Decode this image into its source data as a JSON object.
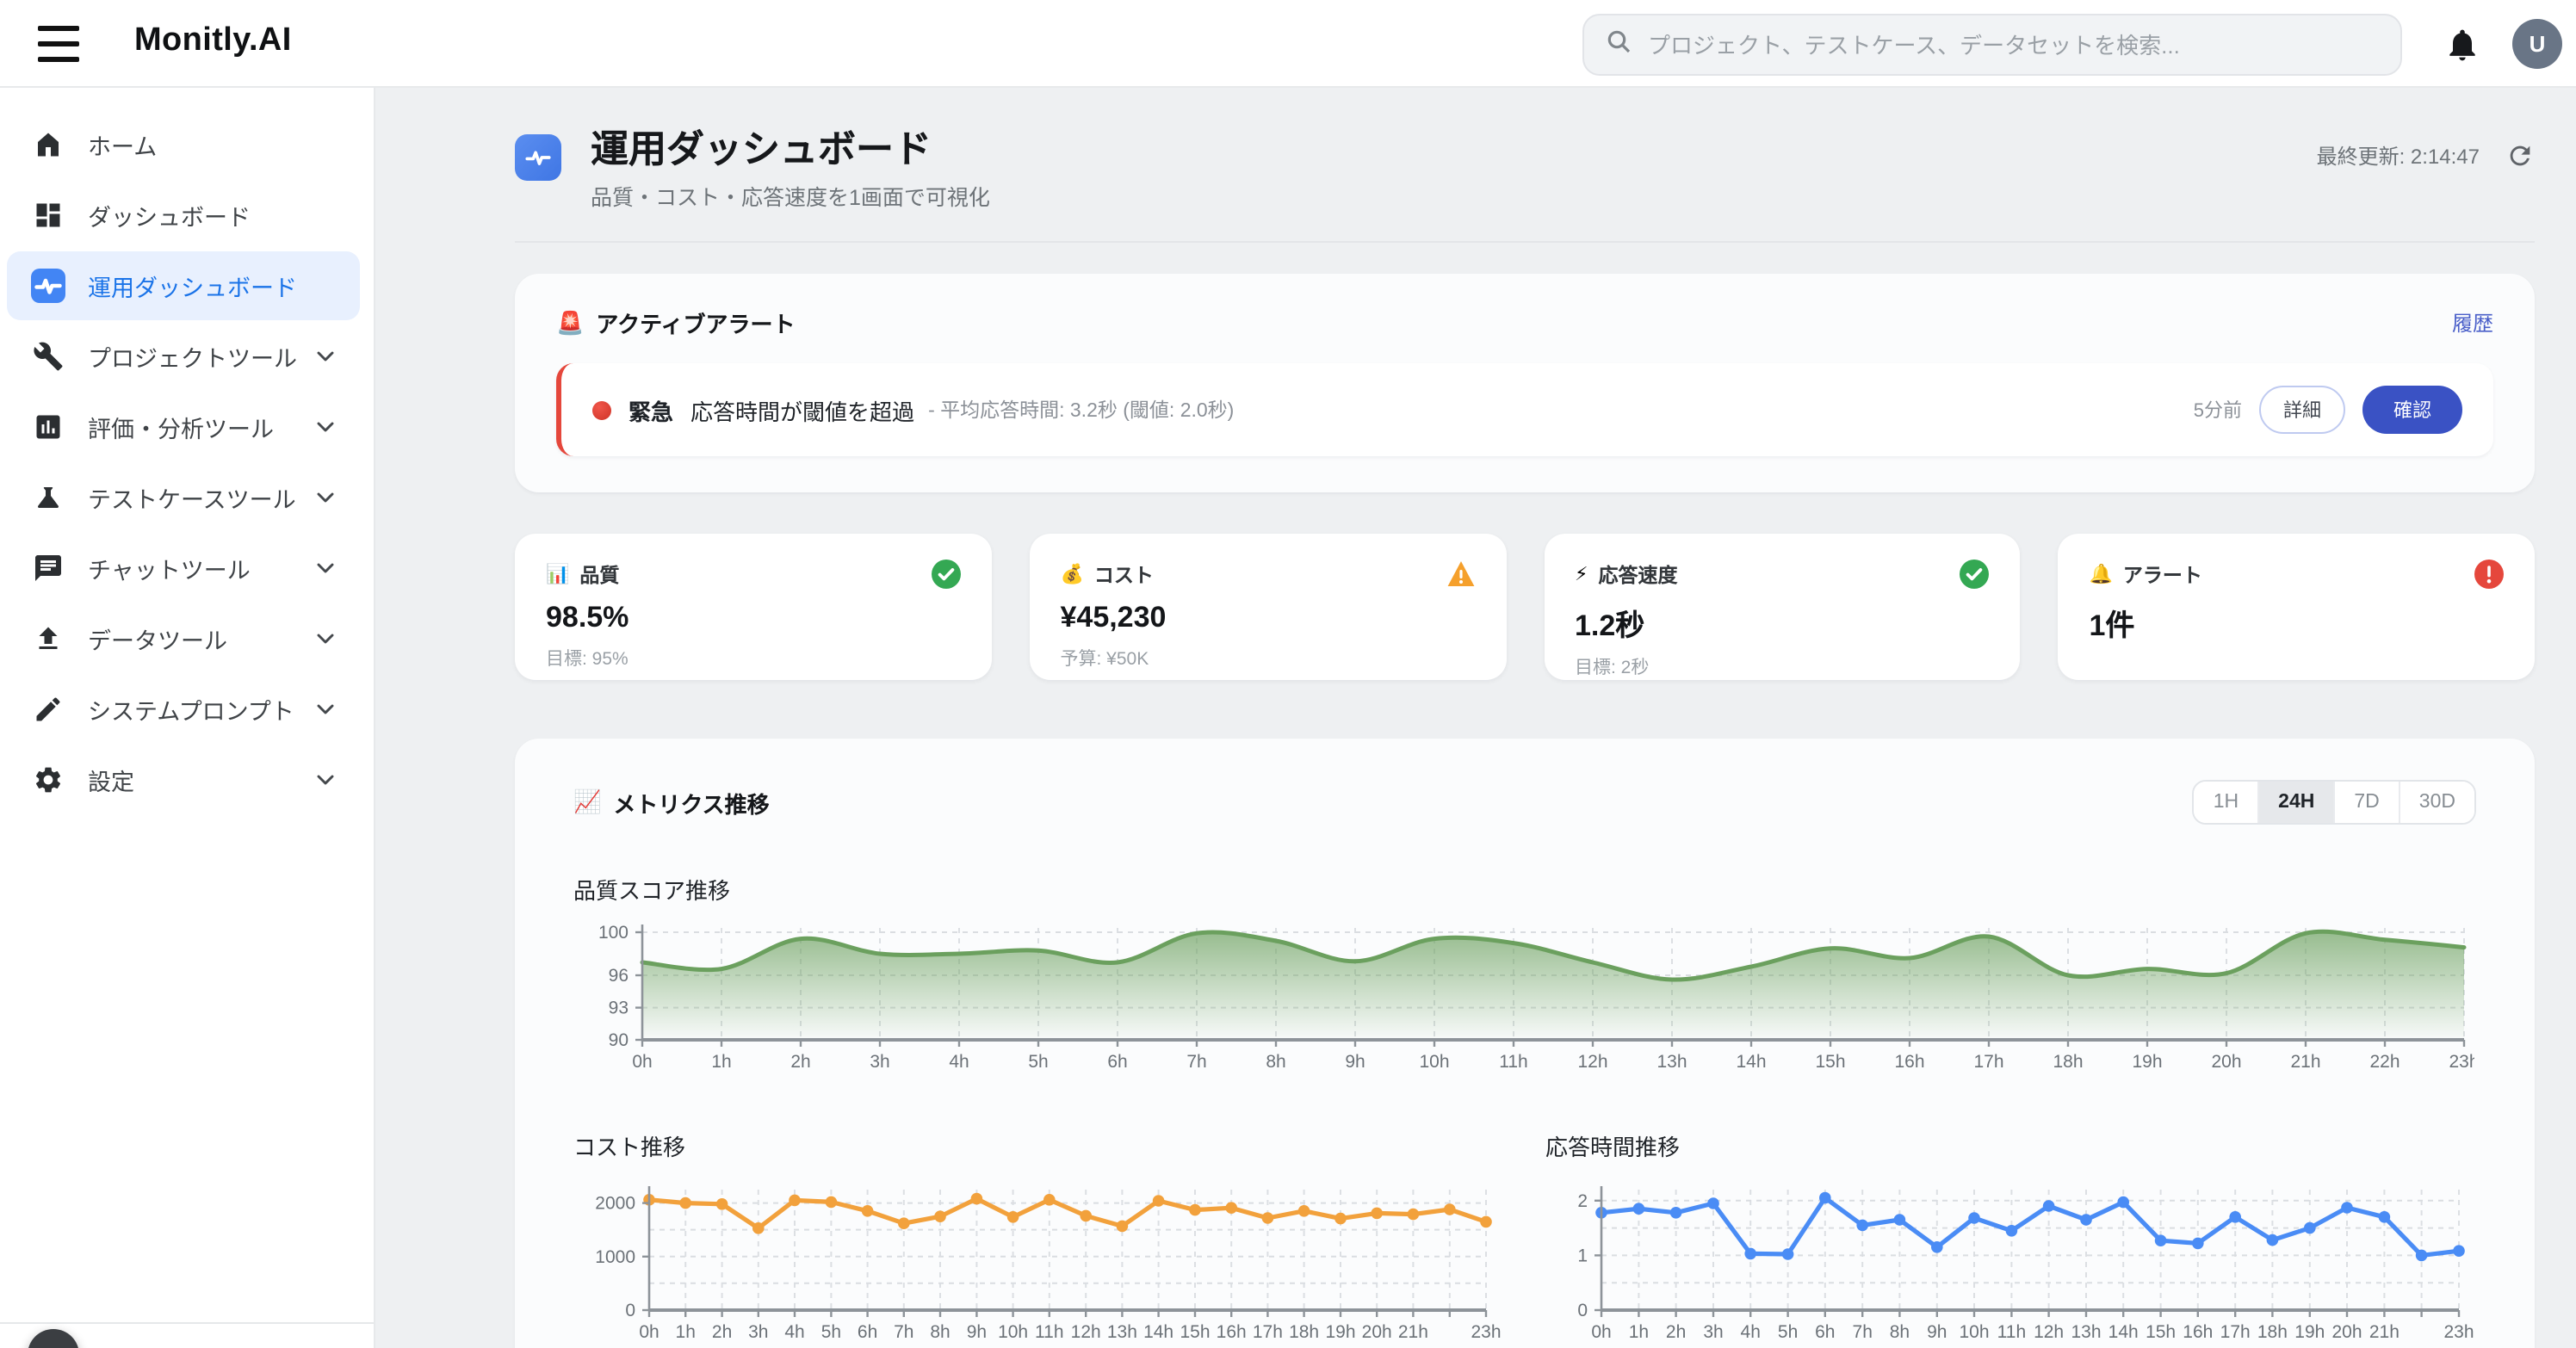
{
  "topbar": {
    "logo": "Monitly.AI",
    "search_placeholder": "プロジェクト、テストケース、データセットを検索...",
    "avatar_initial": "U"
  },
  "sidebar": {
    "items": [
      {
        "label": "ホーム",
        "icon": "home-icon",
        "active": false,
        "expandable": false
      },
      {
        "label": "ダッシュボード",
        "icon": "dashboard-icon",
        "active": false,
        "expandable": false
      },
      {
        "label": "運用ダッシュボード",
        "icon": "ops-dashboard-icon",
        "active": true,
        "expandable": false
      },
      {
        "label": "プロジェクトツール",
        "icon": "wrench-icon",
        "active": false,
        "expandable": true
      },
      {
        "label": "評価・分析ツール",
        "icon": "analytics-icon",
        "active": false,
        "expandable": true
      },
      {
        "label": "テストケースツール",
        "icon": "testcase-flask-icon",
        "active": false,
        "expandable": true
      },
      {
        "label": "チャットツール",
        "icon": "chat-icon",
        "active": false,
        "expandable": true
      },
      {
        "label": "データツール",
        "icon": "upload-icon",
        "active": false,
        "expandable": true
      },
      {
        "label": "システムプロンプト",
        "icon": "pencil-icon",
        "active": false,
        "expandable": true
      },
      {
        "label": "設定",
        "icon": "gear-icon",
        "active": false,
        "expandable": true
      }
    ]
  },
  "page_header": {
    "title": "運用ダッシュボード",
    "subtitle": "品質・コスト・応答速度を1画面で可視化",
    "last_updated": "最終更新: 2:14:47"
  },
  "alert_section": {
    "header_icon": "🚨",
    "header_title": "アクティブアラート",
    "history_link": "履歴",
    "alerts": [
      {
        "severity_label": "緊急",
        "message": "応答時間が閾値を超過",
        "detail": "- 平均応答時間: 3.2秒 (閾値: 2.0秒)",
        "time_ago": "5分前",
        "detail_button": "詳細",
        "confirm_button": "確認"
      }
    ]
  },
  "kpi_cards": [
    {
      "icon": "📊",
      "label": "品質",
      "value": "98.5%",
      "sub": "目標: 95%",
      "status": "ok"
    },
    {
      "icon": "💰",
      "label": "コスト",
      "value": "¥45,230",
      "sub": "予算: ¥50K",
      "status": "warn"
    },
    {
      "icon": "⚡",
      "label": "応答速度",
      "value": "1.2秒",
      "sub": "目標: 2秒",
      "status": "ok"
    },
    {
      "icon": "🔔",
      "label": "アラート",
      "value": "1件",
      "sub": "",
      "status": "error"
    }
  ],
  "metrics_section": {
    "header_icon": "📈",
    "header_title": "メトリクス推移",
    "ranges": [
      "1H",
      "24H",
      "7D",
      "30D"
    ],
    "active_range": "24H"
  },
  "chart_data": [
    {
      "id": "quality",
      "type": "area",
      "title": "品質スコア推移",
      "x": [
        "0h",
        "1h",
        "2h",
        "3h",
        "4h",
        "5h",
        "6h",
        "7h",
        "8h",
        "9h",
        "10h",
        "11h",
        "12h",
        "13h",
        "14h",
        "15h",
        "16h",
        "17h",
        "18h",
        "19h",
        "20h",
        "21h",
        "22h",
        "23h"
      ],
      "values": [
        97.2,
        96.6,
        99.4,
        98.0,
        98.0,
        98.3,
        97.2,
        99.9,
        99.2,
        97.3,
        99.4,
        99.0,
        97.2,
        95.6,
        96.8,
        98.5,
        97.6,
        99.6,
        96.0,
        96.6,
        96.2,
        99.9,
        99.3,
        98.6
      ],
      "ylim": [
        90,
        100.4
      ],
      "y_ticks": [
        100,
        96,
        93,
        90
      ],
      "grid_y": [
        100,
        96,
        93
      ],
      "x_label_skip": [],
      "color": "#6ba05e",
      "grid": "dashed",
      "legend": "none"
    },
    {
      "id": "cost",
      "type": "line",
      "title": "コスト推移",
      "x": [
        "0h",
        "1h",
        "2h",
        "3h",
        "4h",
        "5h",
        "6h",
        "7h",
        "8h",
        "9h",
        "10h",
        "11h",
        "12h",
        "13h",
        "14h",
        "15h",
        "16h",
        "17h",
        "18h",
        "19h",
        "20h",
        "21h",
        "22h",
        "23h"
      ],
      "values": [
        2060,
        2000,
        1980,
        1530,
        2050,
        2020,
        1850,
        1620,
        1750,
        2080,
        1740,
        2060,
        1760,
        1570,
        2040,
        1870,
        1910,
        1720,
        1850,
        1710,
        1810,
        1790,
        1880,
        1650
      ],
      "ylim": [
        0,
        2250
      ],
      "y_ticks": [
        2000,
        1000,
        0
      ],
      "grid_y": [
        2000,
        1500,
        1000,
        500
      ],
      "x_label_skip": [
        "22h"
      ],
      "color": "#f2a13c",
      "grid": "dashed",
      "legend": "none"
    },
    {
      "id": "response",
      "type": "line",
      "title": "応答時間推移",
      "x": [
        "0h",
        "1h",
        "2h",
        "3h",
        "4h",
        "5h",
        "6h",
        "7h",
        "8h",
        "9h",
        "10h",
        "11h",
        "12h",
        "13h",
        "14h",
        "15h",
        "16h",
        "17h",
        "18h",
        "19h",
        "20h",
        "21h",
        "22h",
        "23h"
      ],
      "values": [
        1.78,
        1.85,
        1.78,
        1.95,
        1.03,
        1.02,
        2.05,
        1.55,
        1.65,
        1.15,
        1.68,
        1.45,
        1.9,
        1.65,
        1.97,
        1.27,
        1.22,
        1.7,
        1.28,
        1.5,
        1.87,
        1.7,
        1.0,
        1.08
      ],
      "ylim": [
        0,
        2.2
      ],
      "y_ticks": [
        2,
        1,
        0
      ],
      "grid_y": [
        2,
        1.5,
        1,
        0.5
      ],
      "x_label_skip": [
        "22h"
      ],
      "color": "#4a8cf5",
      "grid": "dashed",
      "legend": "none"
    }
  ],
  "colors": {
    "accent_blue": "#1a73e8",
    "active_item_bg": "#e8f0fe",
    "alert_red": "#e5473c",
    "success_green": "#34a853",
    "warning_orange": "#f5a02c",
    "confirm_button_blue": "#3a52c4",
    "link_blue": "#4a5fc9",
    "quality_green": "#6ba05e",
    "cost_orange": "#f2a13c",
    "response_blue": "#4a8cf5"
  }
}
